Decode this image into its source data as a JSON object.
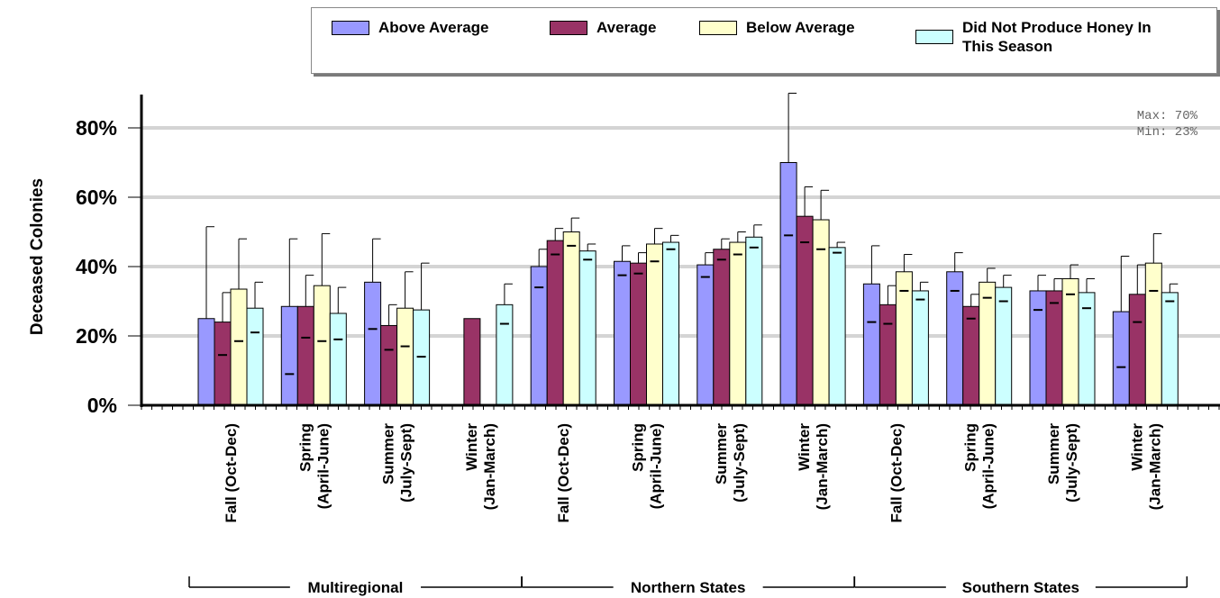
{
  "chart_data": {
    "type": "bar",
    "ylabel": "Deceased Colonies",
    "ylim": [
      0,
      90
    ],
    "yticks": [
      "0%",
      "20%",
      "40%",
      "60%",
      "80%"
    ],
    "grid": true,
    "legend_position": "top",
    "annotation": {
      "max": "Max: 70%",
      "min": "Min: 23%"
    },
    "groups": [
      {
        "label": "Multiregional",
        "categories": [
          "Fall (Oct-Dec)",
          "Spring\n(April-June)",
          "Summer\n(July-Sept)",
          "Winter\n(Jan-March)"
        ]
      },
      {
        "label": "Northern States",
        "categories": [
          "Fall (Oct-Dec)",
          "Spring\n(April-June)",
          "Summer\n(July-Sept)",
          "Winter\n(Jan-March)"
        ]
      },
      {
        "label": "Southern States",
        "categories": [
          "Fall (Oct-Dec)",
          "Spring\n(April-June)",
          "Summer\n(July-Sept)",
          "Winter\n(Jan-March)"
        ]
      }
    ],
    "series": [
      {
        "name": "Above Average",
        "color": "#9999ff",
        "values": [
          25,
          28.5,
          35.5,
          null,
          40,
          41.5,
          40.5,
          70,
          35,
          38.5,
          33,
          27
        ],
        "upper": [
          51.5,
          48,
          48,
          null,
          45,
          46,
          44,
          90,
          46,
          44,
          37.5,
          43
        ],
        "lower": [
          null,
          9,
          22,
          null,
          34,
          37.5,
          37,
          49,
          24,
          33,
          27.5,
          11
        ]
      },
      {
        "name": "Average",
        "color": "#993366",
        "values": [
          24,
          28.5,
          23,
          25,
          47.5,
          41,
          45,
          54.5,
          29,
          28.5,
          33,
          32
        ],
        "upper": [
          32.5,
          37.5,
          29,
          null,
          51,
          44,
          48,
          63,
          34.5,
          32,
          36.5,
          40.5
        ],
        "lower": [
          14.5,
          19.5,
          16,
          null,
          43.5,
          38,
          42,
          47,
          23.5,
          25,
          29.5,
          24
        ]
      },
      {
        "name": "Below Average",
        "color": "#ffffcc",
        "values": [
          33.5,
          34.5,
          28,
          null,
          50,
          46.5,
          47,
          53.5,
          38.5,
          35.5,
          36.5,
          41
        ],
        "upper": [
          48,
          49.5,
          38.5,
          null,
          54,
          51,
          50,
          62,
          43.5,
          39.5,
          40.5,
          49.5
        ],
        "lower": [
          18.5,
          18.5,
          17,
          null,
          46,
          41.5,
          43.5,
          45,
          33,
          31,
          32,
          33
        ]
      },
      {
        "name": "Did Not Produce Honey In\nThis Season",
        "color": "#ccffff",
        "values": [
          28,
          26.5,
          27.5,
          29,
          44.5,
          47,
          48.5,
          45.5,
          33,
          34,
          32.5,
          32.5
        ],
        "upper": [
          35.5,
          34,
          41,
          35,
          46.5,
          49,
          52,
          47,
          35.5,
          37.5,
          36.5,
          35
        ],
        "lower": [
          21,
          19,
          14,
          23.5,
          42,
          45,
          45.5,
          44,
          30.5,
          30,
          28,
          30
        ]
      }
    ]
  }
}
